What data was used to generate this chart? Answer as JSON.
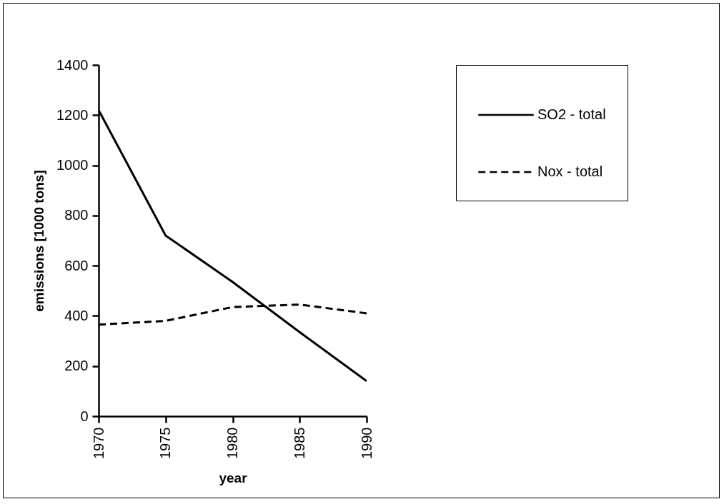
{
  "chart_data": {
    "type": "line",
    "xlabel": "year",
    "ylabel": "emissions  [1000  tons]",
    "x": [
      1970,
      1975,
      1980,
      1985,
      1990
    ],
    "series": [
      {
        "name": "SO2 - total",
        "color": "#000000",
        "line_style": "solid",
        "values": [
          1220,
          720,
          535,
          335,
          140
        ]
      },
      {
        "name": "Nox - total",
        "color": "#000000",
        "line_style": "dashed",
        "values": [
          365,
          380,
          435,
          445,
          410
        ]
      }
    ],
    "xlim": [
      1970,
      1990
    ],
    "xticks": [
      1970,
      1975,
      1980,
      1985,
      1990
    ],
    "ylim": [
      0,
      1400
    ],
    "yticks": [
      0,
      200,
      400,
      600,
      800,
      1000,
      1200,
      1400
    ],
    "grid": false,
    "legend": "right",
    "marker": "none"
  }
}
